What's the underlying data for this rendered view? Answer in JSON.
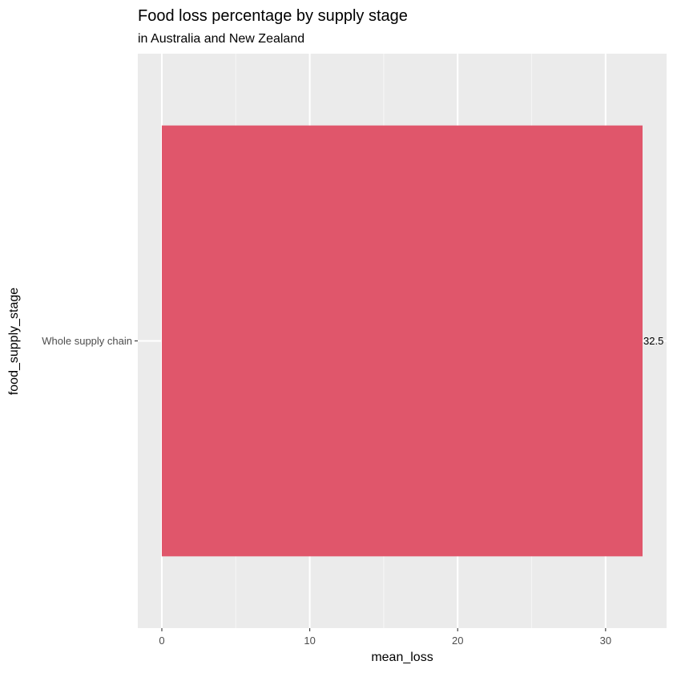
{
  "chart_data": {
    "type": "bar",
    "orientation": "horizontal",
    "title": "Food loss percentage by supply stage",
    "subtitle": "in Australia and New Zealand",
    "xlabel": "mean_loss",
    "ylabel": "food_supply_stage",
    "categories": [
      "Whole supply chain"
    ],
    "values": [
      32.5
    ],
    "data_labels": [
      "32.5"
    ],
    "xlim": [
      -1.625,
      34.125
    ],
    "x_ticks": [
      0,
      10,
      20,
      30
    ],
    "x_tick_labels": [
      "0",
      "10",
      "20",
      "30"
    ],
    "grid": true,
    "legend": "none",
    "colors": {
      "bar": "#e0566b",
      "panel_background": "#ebebeb",
      "grid_major": "#ffffff",
      "grid_minor": "#f5f5f5",
      "tick_text": "#4d4d4d"
    }
  }
}
